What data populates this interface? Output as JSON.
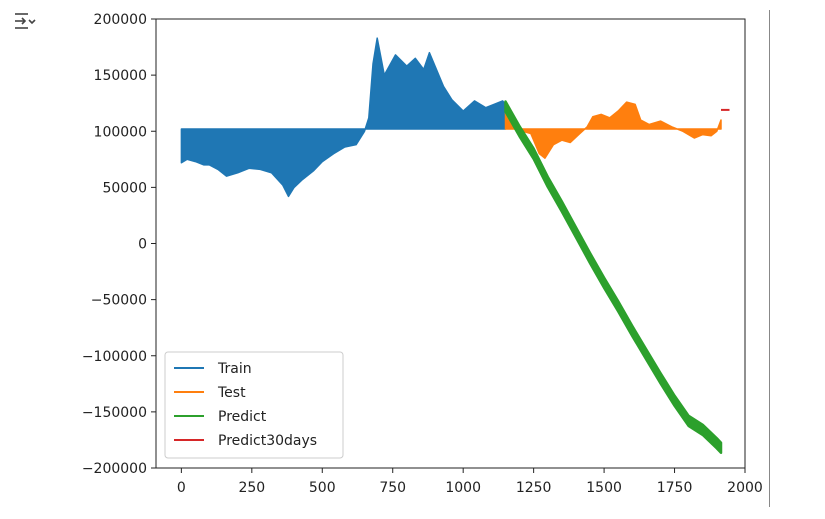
{
  "toolbar": {
    "output_toggle_icon": "output-collapse-icon"
  },
  "chart_data": {
    "type": "line",
    "title": "",
    "xlabel": "",
    "ylabel": "",
    "xlim": [
      -90,
      2000
    ],
    "ylim": [
      -200000,
      200000
    ],
    "xticks": [
      0,
      250,
      500,
      750,
      1000,
      1250,
      1500,
      1750,
      2000
    ],
    "xtick_labels": [
      "0",
      "250",
      "500",
      "750",
      "1000",
      "1250",
      "1500",
      "1750",
      "2000"
    ],
    "yticks": [
      200000,
      150000,
      100000,
      50000,
      0,
      -50000,
      -100000,
      -150000,
      -200000
    ],
    "ytick_labels": [
      "200000",
      "150000",
      "100000",
      "50000",
      "0",
      "−50000",
      "−100000",
      "−150000",
      "−200000"
    ],
    "grid": false,
    "legend_position": "lower-left",
    "series": [
      {
        "name": "Train",
        "color": "#1f77b4",
        "baseline": 102000,
        "x": [
          0,
          20,
          50,
          80,
          100,
          130,
          160,
          200,
          240,
          280,
          320,
          360,
          380,
          400,
          430,
          470,
          500,
          540,
          580,
          620,
          650,
          665,
          680,
          695,
          720,
          760,
          800,
          830,
          860,
          880,
          900,
          930,
          960,
          1000,
          1040,
          1080,
          1110,
          1140,
          1150
        ],
        "values": [
          72000,
          75000,
          73000,
          70000,
          70000,
          66000,
          60000,
          63000,
          67000,
          66000,
          63000,
          52000,
          42000,
          50000,
          57000,
          65000,
          73000,
          80000,
          86000,
          88000,
          100000,
          112000,
          160000,
          183000,
          150000,
          168000,
          158000,
          165000,
          155000,
          170000,
          158000,
          140000,
          128000,
          118000,
          127000,
          121000,
          124000,
          127000,
          124000
        ]
      },
      {
        "name": "Test",
        "color": "#ff7f0e",
        "baseline": 102000,
        "x": [
          1150,
          1180,
          1210,
          1240,
          1270,
          1290,
          1320,
          1350,
          1380,
          1410,
          1440,
          1460,
          1490,
          1520,
          1550,
          1580,
          1610,
          1630,
          1660,
          1700,
          1740,
          1780,
          1820,
          1850,
          1880,
          1900,
          1915
        ],
        "values": [
          120000,
          108000,
          100000,
          98000,
          80000,
          76000,
          88000,
          92000,
          90000,
          97000,
          104000,
          113000,
          115000,
          112000,
          118000,
          126000,
          124000,
          110000,
          106000,
          109000,
          104000,
          100000,
          94000,
          97000,
          96000,
          100000,
          110000
        ]
      },
      {
        "name": "Predict",
        "color": "#2ca02c",
        "band": 4500,
        "x": [
          1150,
          1200,
          1250,
          1300,
          1350,
          1400,
          1450,
          1500,
          1550,
          1600,
          1650,
          1700,
          1750,
          1800,
          1850,
          1900,
          1915
        ],
        "values": [
          122000,
          100000,
          80000,
          55000,
          33000,
          10000,
          -13000,
          -35000,
          -56000,
          -78000,
          -99000,
          -120000,
          -140000,
          -158000,
          -166000,
          -178000,
          -182000
        ]
      },
      {
        "name": "Predict30days",
        "color": "#d62728",
        "x": [
          1915,
          1945
        ],
        "values": [
          119000,
          119000
        ]
      }
    ]
  }
}
